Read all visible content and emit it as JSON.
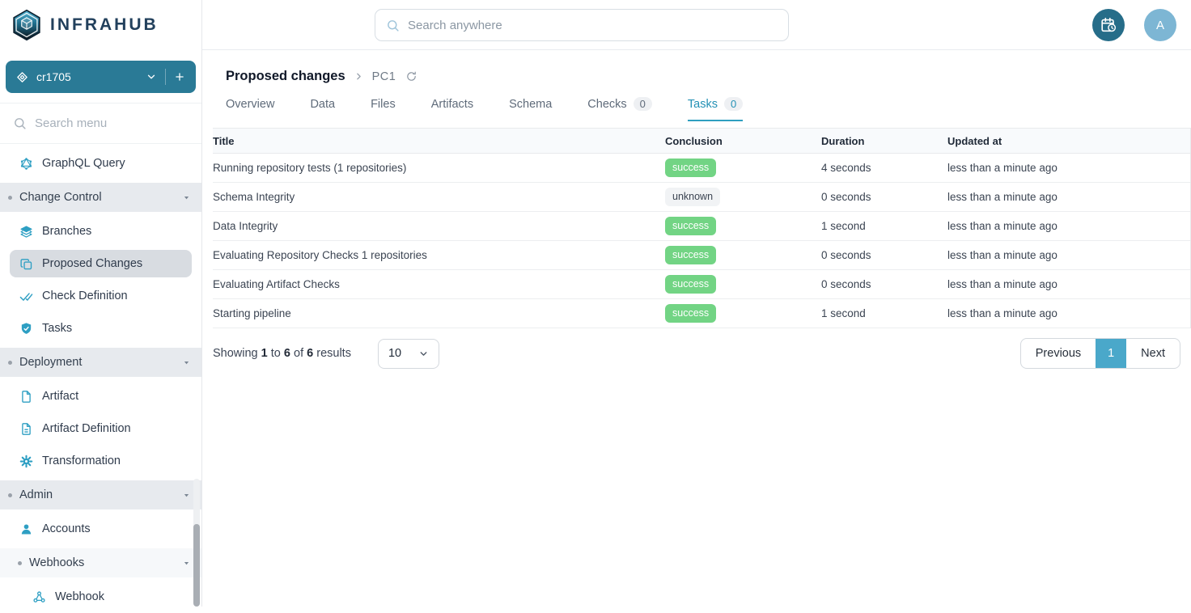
{
  "brand": {
    "name": "INFRAHUB"
  },
  "sidebar": {
    "branch_selector": {
      "label": "cr1705"
    },
    "search_placeholder": "Search menu",
    "menu": [
      {
        "type": "item",
        "icon": "graphql",
        "label": "GraphQL Query"
      },
      {
        "type": "section",
        "label": "Change Control"
      },
      {
        "type": "item",
        "icon": "layers",
        "label": "Branches"
      },
      {
        "type": "item",
        "icon": "copy",
        "label": "Proposed Changes",
        "selected": true
      },
      {
        "type": "item",
        "icon": "double-check",
        "label": "Check Definition"
      },
      {
        "type": "item",
        "icon": "shield-check",
        "label": "Tasks"
      },
      {
        "type": "section",
        "label": "Deployment"
      },
      {
        "type": "item",
        "icon": "file",
        "label": "Artifact"
      },
      {
        "type": "item",
        "icon": "file-lines",
        "label": "Artifact Definition"
      },
      {
        "type": "item",
        "icon": "gear",
        "label": "Transformation"
      },
      {
        "type": "section",
        "label": "Admin"
      },
      {
        "type": "item",
        "icon": "person",
        "label": "Accounts"
      },
      {
        "type": "subsection",
        "label": "Webhooks"
      },
      {
        "type": "item",
        "icon": "nodes",
        "label": "Webhook",
        "indent": true
      }
    ]
  },
  "header": {
    "search_placeholder": "Search anywhere",
    "avatar_initial": "A"
  },
  "page": {
    "title": "Proposed changes",
    "breadcrumb_item": "PC1"
  },
  "tabs": [
    {
      "label": "Overview"
    },
    {
      "label": "Data"
    },
    {
      "label": "Files"
    },
    {
      "label": "Artifacts"
    },
    {
      "label": "Schema"
    },
    {
      "label": "Checks",
      "badge": "0"
    },
    {
      "label": "Tasks",
      "badge": "0",
      "active": true
    }
  ],
  "table": {
    "columns": [
      "Title",
      "Conclusion",
      "Duration",
      "Updated at"
    ],
    "rows": [
      {
        "title": "Running repository tests (1 repositories)",
        "conclusion": "success",
        "duration": "4 seconds",
        "updated": "less than a minute ago"
      },
      {
        "title": "Schema Integrity",
        "conclusion": "unknown",
        "duration": "0 seconds",
        "updated": "less than a minute ago"
      },
      {
        "title": "Data Integrity",
        "conclusion": "success",
        "duration": "1 second",
        "updated": "less than a minute ago"
      },
      {
        "title": "Evaluating Repository Checks 1 repositories",
        "conclusion": "success",
        "duration": "0 seconds",
        "updated": "less than a minute ago"
      },
      {
        "title": "Evaluating Artifact Checks",
        "conclusion": "success",
        "duration": "0 seconds",
        "updated": "less than a minute ago"
      },
      {
        "title": "Starting pipeline",
        "conclusion": "success",
        "duration": "1 second",
        "updated": "less than a minute ago"
      }
    ]
  },
  "pagination": {
    "summary": {
      "showing": "Showing",
      "from": "1",
      "to_word": "to",
      "to": "6",
      "of_word": "of",
      "total": "6",
      "results_word": "results"
    },
    "page_size": "10",
    "previous_label": "Previous",
    "current_page": "1",
    "next_label": "Next"
  },
  "colors": {
    "brand_teal": "#2a7a96",
    "calendar_teal": "#266d89",
    "accent_blue": "#4aa8ca",
    "active_tab": "#2491b5",
    "success_green": "#72d484",
    "icon_teal": "#2e9fc3",
    "avatar_blue": "#7db6d4"
  }
}
